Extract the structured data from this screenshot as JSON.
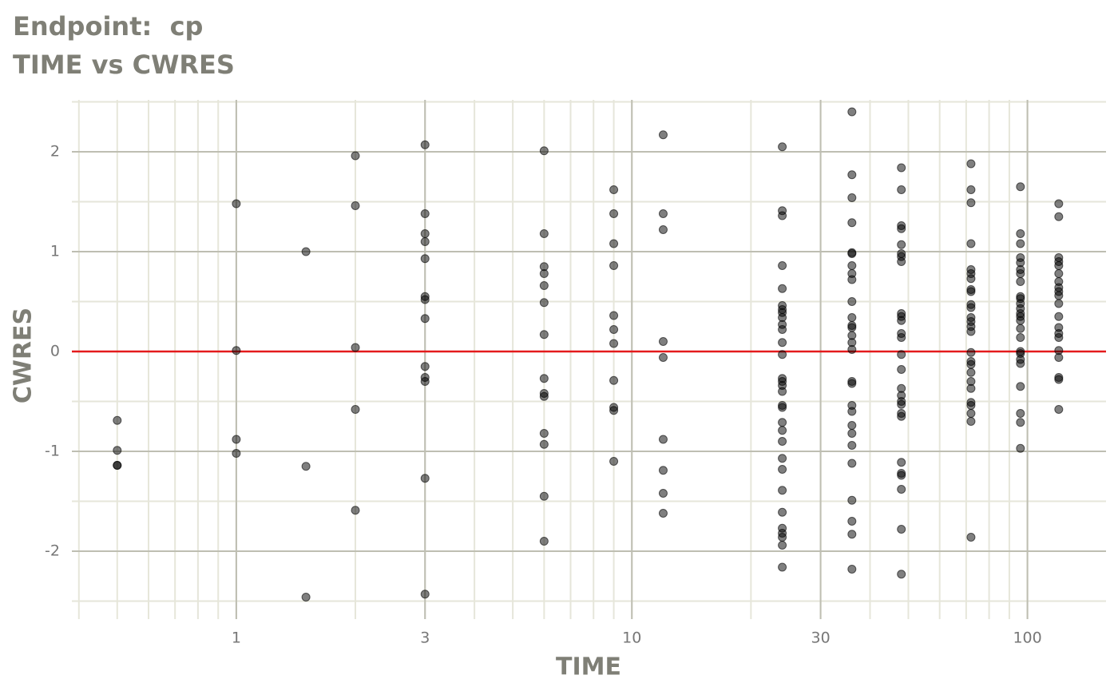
{
  "chart_data": {
    "type": "scatter",
    "title": "Endpoint:  cp",
    "subtitle": "TIME vs CWRES",
    "x_label": "TIME",
    "y_label": "CWRES",
    "log_x": true,
    "grid": true,
    "point_color": "#000000",
    "hline": {
      "value": 0,
      "color": "#e41a1c"
    },
    "xlim": [
      0.384,
      158
    ],
    "ylim": [
      -2.68,
      2.52
    ],
    "xticks": [
      1,
      3,
      10,
      30,
      100
    ],
    "yticks": [
      -2,
      -1,
      0,
      1,
      2
    ],
    "x": [
      0.5,
      0.5,
      0.5,
      0.5,
      1,
      1,
      1,
      1,
      1.5,
      1.5,
      1.5,
      2,
      2,
      2,
      2,
      2,
      3,
      3,
      3,
      3,
      3,
      3,
      3,
      3,
      3,
      3,
      3,
      3,
      3,
      6,
      6,
      6,
      6,
      6,
      6,
      6,
      6,
      6,
      6,
      6,
      6,
      6,
      6,
      9,
      9,
      9,
      9,
      9,
      9,
      9,
      9,
      9,
      9,
      9,
      12,
      12,
      12,
      12,
      12,
      12,
      12,
      12,
      12,
      24,
      24,
      24,
      24,
      24,
      24,
      24,
      24,
      24,
      24,
      24,
      24,
      24,
      24,
      24,
      24,
      24,
      24,
      24,
      24,
      24,
      24,
      24,
      24,
      24,
      24,
      24,
      24,
      24,
      24,
      24,
      36,
      36,
      36,
      36,
      36,
      36,
      36,
      36,
      36,
      36,
      36,
      36,
      36,
      36,
      36,
      36,
      36,
      36,
      36,
      36,
      36,
      36,
      36,
      36,
      36,
      36,
      36,
      36,
      48,
      48,
      48,
      48,
      48,
      48,
      48,
      48,
      48,
      48,
      48,
      48,
      48,
      48,
      48,
      48,
      48,
      48,
      48,
      48,
      48,
      48,
      48,
      48,
      48,
      48,
      48,
      72,
      72,
      72,
      72,
      72,
      72,
      72,
      72,
      72,
      72,
      72,
      72,
      72,
      72,
      72,
      72,
      72,
      72,
      72,
      72,
      72,
      72,
      72,
      72,
      72,
      72,
      96,
      96,
      96,
      96,
      96,
      96,
      96,
      96,
      96,
      96,
      96,
      96,
      96,
      96,
      96,
      96,
      96,
      96,
      96,
      96,
      96,
      96,
      96,
      96,
      96,
      120,
      120,
      120,
      120,
      120,
      120,
      120,
      120,
      120,
      120,
      120,
      120,
      120,
      120,
      120,
      120,
      120,
      120,
      120,
      120
    ],
    "values": [
      -0.69,
      -0.99,
      -1.14,
      -1.14,
      1.48,
      0.01,
      -0.88,
      -1.02,
      1.0,
      -1.15,
      -2.46,
      1.96,
      1.46,
      0.04,
      -0.58,
      -1.59,
      2.07,
      1.38,
      1.18,
      1.1,
      0.93,
      0.55,
      0.52,
      0.33,
      -0.15,
      -0.26,
      -0.3,
      -1.27,
      -2.43,
      2.01,
      1.18,
      0.85,
      0.78,
      0.66,
      0.49,
      0.17,
      -0.27,
      -0.42,
      -0.45,
      -0.82,
      -0.93,
      -1.45,
      -1.9,
      1.62,
      1.38,
      1.08,
      0.86,
      0.36,
      0.22,
      0.08,
      -0.29,
      -0.56,
      -0.59,
      -1.1,
      2.17,
      1.38,
      1.22,
      0.1,
      -0.06,
      -0.88,
      -1.19,
      -1.42,
      -1.62,
      2.05,
      1.41,
      1.36,
      0.86,
      0.63,
      0.46,
      0.42,
      0.39,
      0.34,
      0.27,
      0.22,
      0.09,
      -0.03,
      -0.27,
      -0.3,
      -0.34,
      -0.4,
      -0.54,
      -0.56,
      -0.71,
      -0.79,
      -0.9,
      -1.07,
      -1.18,
      -1.39,
      -1.61,
      -1.77,
      -1.82,
      -1.86,
      -1.94,
      -2.16,
      2.4,
      1.77,
      1.54,
      1.29,
      0.99,
      0.98,
      0.86,
      0.78,
      0.72,
      0.5,
      0.34,
      0.26,
      0.24,
      0.16,
      0.09,
      0.02,
      -0.3,
      -0.32,
      -0.54,
      -0.6,
      -0.74,
      -0.82,
      -0.94,
      -1.12,
      -1.49,
      -1.7,
      -1.83,
      -2.18,
      1.84,
      1.62,
      1.26,
      1.23,
      1.07,
      0.98,
      0.95,
      0.9,
      0.38,
      0.35,
      0.31,
      0.18,
      0.14,
      -0.03,
      -0.18,
      -0.37,
      -0.44,
      -0.5,
      -0.53,
      -0.62,
      -0.65,
      -1.11,
      -1.22,
      -1.24,
      -1.38,
      -1.78,
      -2.23,
      1.88,
      1.62,
      1.49,
      1.08,
      0.82,
      0.78,
      0.73,
      0.62,
      0.6,
      0.47,
      0.44,
      0.34,
      0.3,
      0.25,
      0.2,
      -0.01,
      -0.1,
      -0.13,
      -0.21,
      -0.3,
      -0.37,
      -0.51,
      -0.54,
      -0.62,
      -0.7,
      -1.86,
      1.65,
      1.18,
      1.08,
      0.94,
      0.89,
      0.82,
      0.78,
      0.7,
      0.55,
      0.53,
      0.48,
      0.43,
      0.38,
      0.35,
      0.31,
      0.23,
      0.14,
      0,
      -0.02,
      -0.08,
      -0.12,
      -0.35,
      -0.62,
      -0.71,
      -0.97,
      1.48,
      1.35,
      0.94,
      0.9,
      0.86,
      0.78,
      0.7,
      0.64,
      0.6,
      0.56,
      0.48,
      0.35,
      0.24,
      0.18,
      0.14,
      0.01,
      -0.06,
      -0.26,
      -0.28,
      -0.58
    ]
  }
}
